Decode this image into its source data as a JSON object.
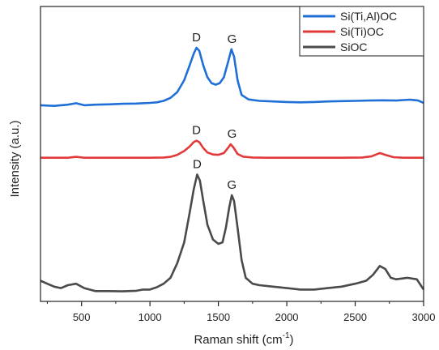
{
  "chart_data": {
    "type": "line",
    "xlabel": "Raman shift (cm",
    "xlabel_sup": "-1",
    "xlabel_tail": ")",
    "ylabel": "Intensity (a.u.)",
    "xlim": [
      200,
      3000
    ],
    "ylim": [
      0,
      1
    ],
    "x_ticks": [
      500,
      1000,
      1500,
      2000,
      2500,
      3000
    ],
    "x_tick_labels": [
      "500",
      "1000",
      "1500",
      "2000",
      "2500",
      "3000"
    ],
    "y_ticks_shown": false,
    "grid": false,
    "legend_position": "top-right",
    "series": [
      {
        "name": "Si(Ti,Al)OC",
        "color": "#1f6fd6",
        "points": [
          [
            200,
            0.665
          ],
          [
            300,
            0.663
          ],
          [
            400,
            0.667
          ],
          [
            460,
            0.672
          ],
          [
            520,
            0.665
          ],
          [
            600,
            0.667
          ],
          [
            700,
            0.668
          ],
          [
            800,
            0.67
          ],
          [
            900,
            0.671
          ],
          [
            1000,
            0.673
          ],
          [
            1050,
            0.675
          ],
          [
            1100,
            0.68
          ],
          [
            1150,
            0.69
          ],
          [
            1200,
            0.71
          ],
          [
            1250,
            0.75
          ],
          [
            1290,
            0.8
          ],
          [
            1320,
            0.84
          ],
          [
            1340,
            0.86
          ],
          [
            1360,
            0.85
          ],
          [
            1390,
            0.8
          ],
          [
            1420,
            0.76
          ],
          [
            1450,
            0.74
          ],
          [
            1480,
            0.735
          ],
          [
            1510,
            0.74
          ],
          [
            1540,
            0.76
          ],
          [
            1570,
            0.81
          ],
          [
            1595,
            0.855
          ],
          [
            1615,
            0.83
          ],
          [
            1640,
            0.75
          ],
          [
            1670,
            0.7
          ],
          [
            1720,
            0.685
          ],
          [
            1800,
            0.68
          ],
          [
            1900,
            0.678
          ],
          [
            2000,
            0.676
          ],
          [
            2100,
            0.675
          ],
          [
            2200,
            0.676
          ],
          [
            2300,
            0.678
          ],
          [
            2400,
            0.679
          ],
          [
            2500,
            0.68
          ],
          [
            2600,
            0.681
          ],
          [
            2700,
            0.682
          ],
          [
            2800,
            0.681
          ],
          [
            2900,
            0.684
          ],
          [
            2960,
            0.681
          ],
          [
            3000,
            0.673
          ]
        ]
      },
      {
        "name": "Si(Ti)OC",
        "color": "#e23a3a",
        "points": [
          [
            200,
            0.487
          ],
          [
            300,
            0.487
          ],
          [
            400,
            0.487
          ],
          [
            460,
            0.49
          ],
          [
            520,
            0.487
          ],
          [
            600,
            0.487
          ],
          [
            700,
            0.487
          ],
          [
            800,
            0.487
          ],
          [
            900,
            0.487
          ],
          [
            1000,
            0.487
          ],
          [
            1100,
            0.488
          ],
          [
            1150,
            0.49
          ],
          [
            1200,
            0.497
          ],
          [
            1250,
            0.51
          ],
          [
            1290,
            0.525
          ],
          [
            1320,
            0.54
          ],
          [
            1340,
            0.545
          ],
          [
            1360,
            0.54
          ],
          [
            1390,
            0.52
          ],
          [
            1420,
            0.505
          ],
          [
            1460,
            0.498
          ],
          [
            1500,
            0.497
          ],
          [
            1540,
            0.503
          ],
          [
            1570,
            0.52
          ],
          [
            1590,
            0.533
          ],
          [
            1610,
            0.522
          ],
          [
            1640,
            0.5
          ],
          [
            1680,
            0.491
          ],
          [
            1750,
            0.488
          ],
          [
            1850,
            0.487
          ],
          [
            2000,
            0.487
          ],
          [
            2200,
            0.487
          ],
          [
            2400,
            0.487
          ],
          [
            2550,
            0.488
          ],
          [
            2620,
            0.492
          ],
          [
            2680,
            0.503
          ],
          [
            2720,
            0.497
          ],
          [
            2780,
            0.489
          ],
          [
            2850,
            0.487
          ],
          [
            2950,
            0.487
          ],
          [
            3000,
            0.487
          ]
        ]
      },
      {
        "name": "SiOC",
        "color": "#4a4a4a",
        "points": [
          [
            200,
            0.07
          ],
          [
            250,
            0.06
          ],
          [
            300,
            0.05
          ],
          [
            350,
            0.045
          ],
          [
            400,
            0.055
          ],
          [
            460,
            0.06
          ],
          [
            520,
            0.045
          ],
          [
            600,
            0.035
          ],
          [
            700,
            0.035
          ],
          [
            800,
            0.034
          ],
          [
            900,
            0.036
          ],
          [
            950,
            0.04
          ],
          [
            1000,
            0.04
          ],
          [
            1050,
            0.048
          ],
          [
            1100,
            0.06
          ],
          [
            1150,
            0.08
          ],
          [
            1200,
            0.13
          ],
          [
            1250,
            0.2
          ],
          [
            1290,
            0.3
          ],
          [
            1320,
            0.38
          ],
          [
            1345,
            0.43
          ],
          [
            1365,
            0.41
          ],
          [
            1390,
            0.34
          ],
          [
            1420,
            0.26
          ],
          [
            1460,
            0.21
          ],
          [
            1500,
            0.195
          ],
          [
            1530,
            0.2
          ],
          [
            1555,
            0.25
          ],
          [
            1580,
            0.32
          ],
          [
            1598,
            0.36
          ],
          [
            1615,
            0.34
          ],
          [
            1640,
            0.25
          ],
          [
            1670,
            0.14
          ],
          [
            1700,
            0.08
          ],
          [
            1750,
            0.06
          ],
          [
            1800,
            0.055
          ],
          [
            1900,
            0.05
          ],
          [
            2000,
            0.045
          ],
          [
            2100,
            0.04
          ],
          [
            2200,
            0.04
          ],
          [
            2300,
            0.045
          ],
          [
            2400,
            0.05
          ],
          [
            2500,
            0.06
          ],
          [
            2580,
            0.07
          ],
          [
            2630,
            0.09
          ],
          [
            2680,
            0.12
          ],
          [
            2720,
            0.11
          ],
          [
            2760,
            0.08
          ],
          [
            2800,
            0.075
          ],
          [
            2880,
            0.08
          ],
          [
            2950,
            0.075
          ],
          [
            3000,
            0.04
          ]
        ]
      }
    ],
    "annotations": [
      {
        "text": "D",
        "series": "Si(Ti,Al)OC",
        "x": 1340
      },
      {
        "text": "G",
        "series": "Si(Ti,Al)OC",
        "x": 1600
      },
      {
        "text": "D",
        "series": "Si(Ti)OC",
        "x": 1340
      },
      {
        "text": "G",
        "series": "Si(Ti)OC",
        "x": 1600
      },
      {
        "text": "D",
        "series": "SiOC",
        "x": 1345
      },
      {
        "text": "G",
        "series": "SiOC",
        "x": 1598
      }
    ]
  }
}
